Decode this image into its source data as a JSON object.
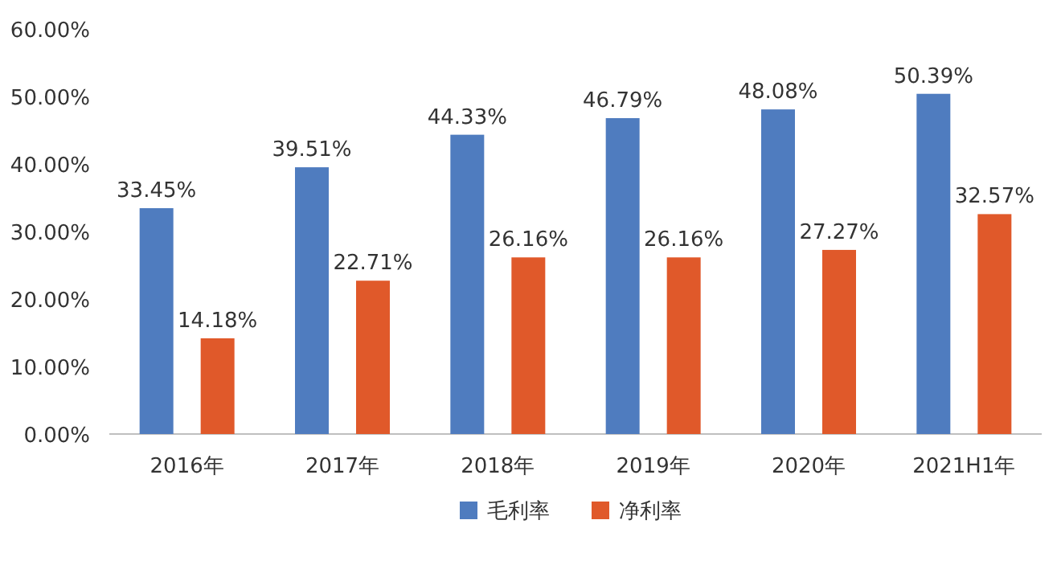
{
  "chart_data": {
    "type": "bar",
    "categories": [
      "2016年",
      "2017年",
      "2018年",
      "2019年",
      "2020年",
      "2021H1年"
    ],
    "series": [
      {
        "name": "毛利率",
        "color": "#4f7cbf",
        "values": [
          33.45,
          39.51,
          44.33,
          46.79,
          48.08,
          50.39
        ],
        "value_labels": [
          "33.45%",
          "39.51%",
          "44.33%",
          "46.79%",
          "48.08%",
          "50.39%"
        ]
      },
      {
        "name": "净利率",
        "color": "#e0592a",
        "values": [
          14.18,
          22.71,
          26.16,
          26.16,
          27.27,
          32.57
        ],
        "value_labels": [
          "14.18%",
          "22.71%",
          "26.16%",
          "26.16%",
          "27.27%",
          "32.57%"
        ]
      }
    ],
    "ylim": [
      0,
      60
    ],
    "yticks": [
      {
        "value": 0,
        "label": "0.00%"
      },
      {
        "value": 10,
        "label": "10.00%"
      },
      {
        "value": 20,
        "label": "20.00%"
      },
      {
        "value": 30,
        "label": "30.00%"
      },
      {
        "value": 40,
        "label": "40.00%"
      },
      {
        "value": 50,
        "label": "50.00%"
      },
      {
        "value": 60,
        "label": "60.00%"
      }
    ],
    "grid": false,
    "legend": "bottom"
  }
}
